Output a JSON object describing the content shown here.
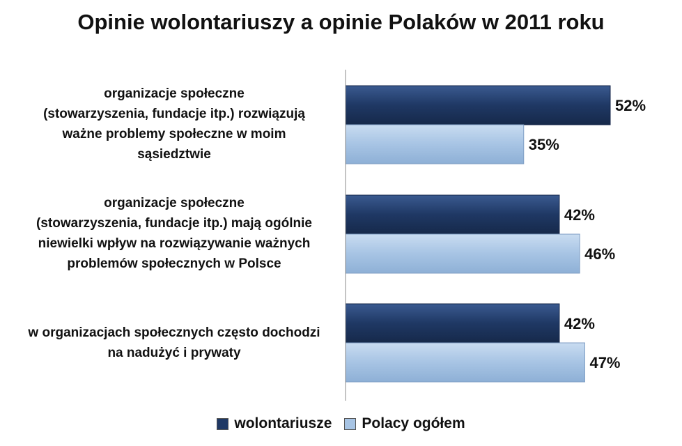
{
  "chart_data": {
    "type": "bar",
    "orientation": "horizontal",
    "title": "Opinie wolontariuszy a opinie Polaków w 2011 roku",
    "categories": [
      "organizacje społeczne (stowarzyszenia, fundacje itp.) rozwiązują ważne problemy społeczne w moim sąsiedztwie",
      "organizacje społeczne (stowarzyszenia, fundacje itp.) mają ogólnie niewielki wpływ na rozwiązywanie ważnych problemów społecznych w Polsce",
      "w organizacjach społecznych często dochodzi na nadużyć i prywaty"
    ],
    "category_lines": [
      [
        "organizacje społeczne",
        "(stowarzyszenia, fundacje itp.) rozwiązują",
        "ważne problemy społeczne w moim",
        "sąsiedztwie"
      ],
      [
        "organizacje społeczne",
        "(stowarzyszenia, fundacje itp.) mają ogólnie",
        "niewielki wpływ na rozwiązywanie ważnych",
        "problemów społecznych w Polsce"
      ],
      [
        "w organizacjach społecznych często dochodzi",
        "na nadużyć i prywaty"
      ]
    ],
    "series": [
      {
        "name": "wolontariusze",
        "values": [
          52,
          42,
          42
        ],
        "labels": [
          "52%",
          "42%",
          "42%"
        ],
        "color": "#1f3864"
      },
      {
        "name": "Polacy ogółem",
        "values": [
          35,
          46,
          47
        ],
        "labels": [
          "35%",
          "46%",
          "47%"
        ],
        "color": "#a7c4e4"
      }
    ],
    "xlim": [
      0,
      60
    ],
    "unit": "%",
    "grid": false,
    "legend_position": "bottom"
  }
}
